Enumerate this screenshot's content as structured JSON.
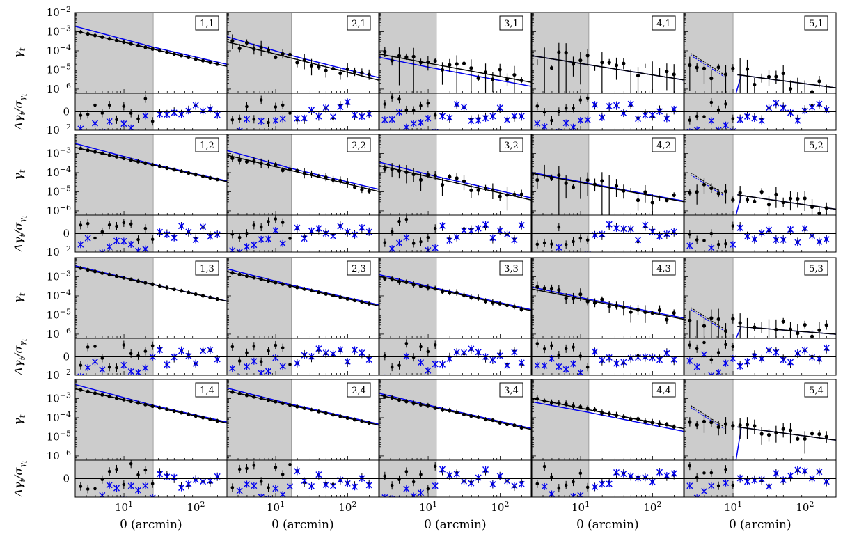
{
  "chart_data": {
    "type": "scatter",
    "description_of_grid": "5 columns x 4 rows of paired panels (gamma_t on log scale with residual panel below)",
    "colors": {
      "data": "#000000",
      "model_black": "#000000",
      "model_blue": "#0000ee",
      "excluded_region": "#cccccc",
      "excluded_edge": "#a0a0a0"
    },
    "xlabel": "θ (arcmin)",
    "ylabel_main": "γ",
    "ylabel_main_sub": "t",
    "ylabel_resid": "Δγ",
    "ylabel_resid_sub": "t",
    "ylabel_resid_den": "/σ",
    "ylabel_resid_den_sub": "γ",
    "ylabel_resid_den_subsub": "t",
    "xscale": "log",
    "xlim": [
      2.1,
      270
    ],
    "xticks": [
      {
        "value": 10,
        "base": "10",
        "exp": "1"
      },
      {
        "value": 100,
        "base": "10",
        "exp": "2"
      }
    ],
    "main_yscale": "log",
    "main_ylim": [
      6e-07,
      0.01
    ],
    "main_yticks": [
      {
        "value": 0.01,
        "base": "10",
        "exp": "−2"
      },
      {
        "value": 0.001,
        "base": "10",
        "exp": "−3"
      },
      {
        "value": 0.0001,
        "base": "10",
        "exp": "−4"
      },
      {
        "value": 1e-05,
        "base": "10",
        "exp": "−5"
      },
      {
        "value": 1e-06,
        "base": "10",
        "exp": "−6"
      }
    ],
    "resid_ylim": [
      -1,
      1
    ],
    "resid_ytick_label": "0",
    "column_scale_cuts_arcmin": [
      25.5,
      16.5,
      13,
      13,
      10
    ],
    "panels": [
      {
        "label": "1,1",
        "col": 0,
        "row": 0,
        "amp": 0.00095,
        "slope": -0.88,
        "blue_amp": 0.0016,
        "blue_slope": -1.0,
        "blue_break": 26,
        "noise": 0.0,
        "hook": false
      },
      {
        "label": "2,1",
        "col": 1,
        "row": 0,
        "amp": 0.00025,
        "slope": -0.95,
        "blue_amp": 0.00045,
        "blue_slope": -1.1,
        "blue_break": 16,
        "noise": 0.7,
        "hook": false
      },
      {
        "label": "3,1",
        "col": 2,
        "row": 0,
        "amp": 6e-05,
        "slope": -0.7,
        "blue_amp": 4e-05,
        "blue_slope": -0.75,
        "blue_break": 12,
        "noise": 1.2,
        "hook": false
      },
      {
        "label": "4,1",
        "col": 3,
        "row": 0,
        "amp": 5e-05,
        "slope": -0.6,
        "blue_amp": 5e-05,
        "blue_slope": -0.6,
        "blue_break": 12,
        "noise": 1.6,
        "hook": false
      },
      {
        "label": "5,1",
        "col": 4,
        "row": 0,
        "amp": 1.2e-05,
        "slope": -0.5,
        "blue_amp": 1.2e-05,
        "blue_slope": -0.5,
        "blue_break": 10,
        "noise": 1.4,
        "hook": true
      },
      {
        "label": "1,2",
        "col": 0,
        "row": 1,
        "amp": 0.0018,
        "slope": -0.85,
        "blue_amp": 0.0028,
        "blue_slope": -1.0,
        "blue_break": 26,
        "noise": 0.0,
        "hook": false
      },
      {
        "label": "2,2",
        "col": 1,
        "row": 1,
        "amp": 0.0007,
        "slope": -0.9,
        "blue_amp": 0.0012,
        "blue_slope": -1.05,
        "blue_break": 16,
        "noise": 0.4,
        "hook": false
      },
      {
        "label": "3,2",
        "col": 2,
        "row": 1,
        "amp": 0.0002,
        "slope": -0.85,
        "blue_amp": 0.0003,
        "blue_slope": -0.95,
        "blue_break": 12,
        "noise": 0.9,
        "hook": false
      },
      {
        "label": "4,2",
        "col": 3,
        "row": 1,
        "amp": 8e-05,
        "slope": -0.7,
        "blue_amp": 9e-05,
        "blue_slope": -0.72,
        "blue_break": 12,
        "noise": 1.3,
        "hook": false
      },
      {
        "label": "5,2",
        "col": 4,
        "row": 1,
        "amp": 1.6e-05,
        "slope": -0.55,
        "blue_amp": 1.6e-05,
        "blue_slope": -0.55,
        "blue_break": 10,
        "noise": 1.2,
        "hook": true
      },
      {
        "label": "1,3",
        "col": 0,
        "row": 2,
        "amp": 0.0028,
        "slope": -0.85,
        "blue_amp": 0.0032,
        "blue_slope": -0.9,
        "blue_break": 26,
        "noise": 0.0,
        "hook": false
      },
      {
        "label": "2,3",
        "col": 1,
        "row": 2,
        "amp": 0.0016,
        "slope": -0.85,
        "blue_amp": 0.0022,
        "blue_slope": -0.95,
        "blue_break": 16,
        "noise": 0.0,
        "hook": false
      },
      {
        "label": "3,3",
        "col": 2,
        "row": 2,
        "amp": 0.0009,
        "slope": -0.85,
        "blue_amp": 0.0011,
        "blue_slope": -0.9,
        "blue_break": 12,
        "noise": 0.2,
        "hook": false
      },
      {
        "label": "4,3",
        "col": 3,
        "row": 2,
        "amp": 0.0002,
        "slope": -0.75,
        "blue_amp": 0.00025,
        "blue_slope": -0.8,
        "blue_break": 12,
        "noise": 0.8,
        "hook": false
      },
      {
        "label": "5,3",
        "col": 4,
        "row": 2,
        "amp": 4e-06,
        "slope": -0.3,
        "blue_amp": 4e-06,
        "blue_slope": -0.3,
        "blue_break": 10,
        "noise": 1.6,
        "hook": true
      },
      {
        "label": "1,4",
        "col": 0,
        "row": 3,
        "amp": 0.0028,
        "slope": -0.85,
        "blue_amp": 0.0045,
        "blue_slope": -1.0,
        "blue_break": 26,
        "noise": 0.0,
        "hook": false
      },
      {
        "label": "2,4",
        "col": 1,
        "row": 3,
        "amp": 0.0022,
        "slope": -0.85,
        "blue_amp": 0.003,
        "blue_slope": -0.95,
        "blue_break": 16,
        "noise": 0.0,
        "hook": false
      },
      {
        "label": "3,4",
        "col": 2,
        "row": 3,
        "amp": 0.0013,
        "slope": -0.85,
        "blue_amp": 0.0016,
        "blue_slope": -0.9,
        "blue_break": 12,
        "noise": 0.1,
        "hook": false
      },
      {
        "label": "4,4",
        "col": 3,
        "row": 3,
        "amp": 0.0009,
        "slope": -0.75,
        "blue_amp": 0.0006,
        "blue_slope": -0.7,
        "blue_break": 12,
        "noise": 0.2,
        "hook": false
      },
      {
        "label": "5,4",
        "col": 4,
        "row": 3,
        "amp": 7e-05,
        "slope": -0.5,
        "blue_amp": 7e-05,
        "blue_slope": -0.5,
        "blue_break": 10,
        "noise": 0.9,
        "hook": true
      }
    ]
  }
}
